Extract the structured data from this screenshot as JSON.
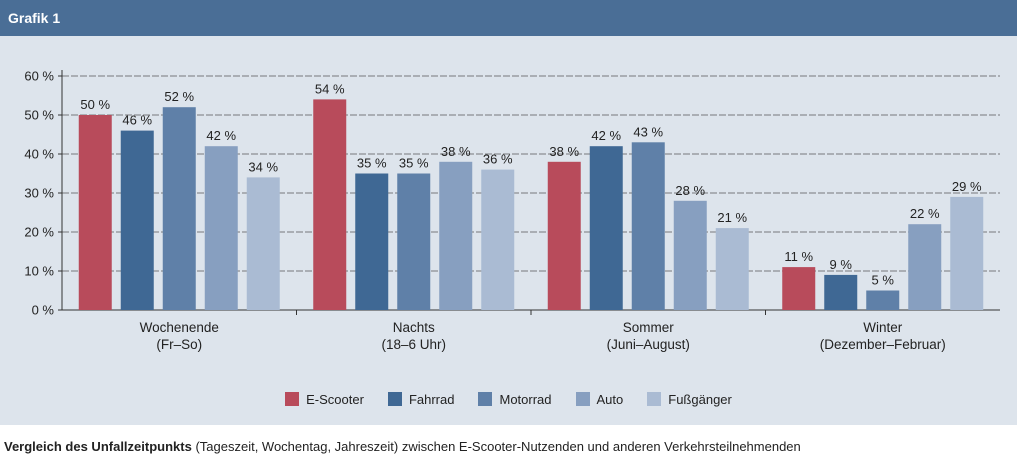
{
  "header": {
    "title": "Grafik 1"
  },
  "caption": {
    "bold": "Vergleich des Unfallzeitpunkts",
    "rest": " (Tageszeit, Wochentag, Jahreszeit) zwischen E-Scooter-Nutzenden und anderen Verkehrsteilnehmenden"
  },
  "chart_data": {
    "type": "bar",
    "categories": [
      [
        "Wochenende",
        "(Fr–So)"
      ],
      [
        "Nachts",
        "(18–6 Uhr)"
      ],
      [
        "Sommer",
        "(Juni–August)"
      ],
      [
        "Winter",
        "(Dezember–Februar)"
      ]
    ],
    "series": [
      {
        "name": "E-Scooter",
        "color": "#b84b5b",
        "values": [
          50,
          54,
          38,
          11
        ]
      },
      {
        "name": "Fahrrad",
        "color": "#3f6894",
        "values": [
          46,
          35,
          42,
          9
        ]
      },
      {
        "name": "Motorrad",
        "color": "#5f80a8",
        "values": [
          52,
          35,
          43,
          5
        ]
      },
      {
        "name": "Auto",
        "color": "#879fc0",
        "values": [
          42,
          38,
          28,
          22
        ]
      },
      {
        "name": "Fußgänger",
        "color": "#aabbd3",
        "values": [
          34,
          36,
          21,
          29
        ]
      }
    ],
    "ylim": [
      0,
      60
    ],
    "yticks": [
      0,
      10,
      20,
      30,
      40,
      50,
      60
    ],
    "value_suffix": " %",
    "grid": true,
    "legend_position": "bottom-center"
  }
}
